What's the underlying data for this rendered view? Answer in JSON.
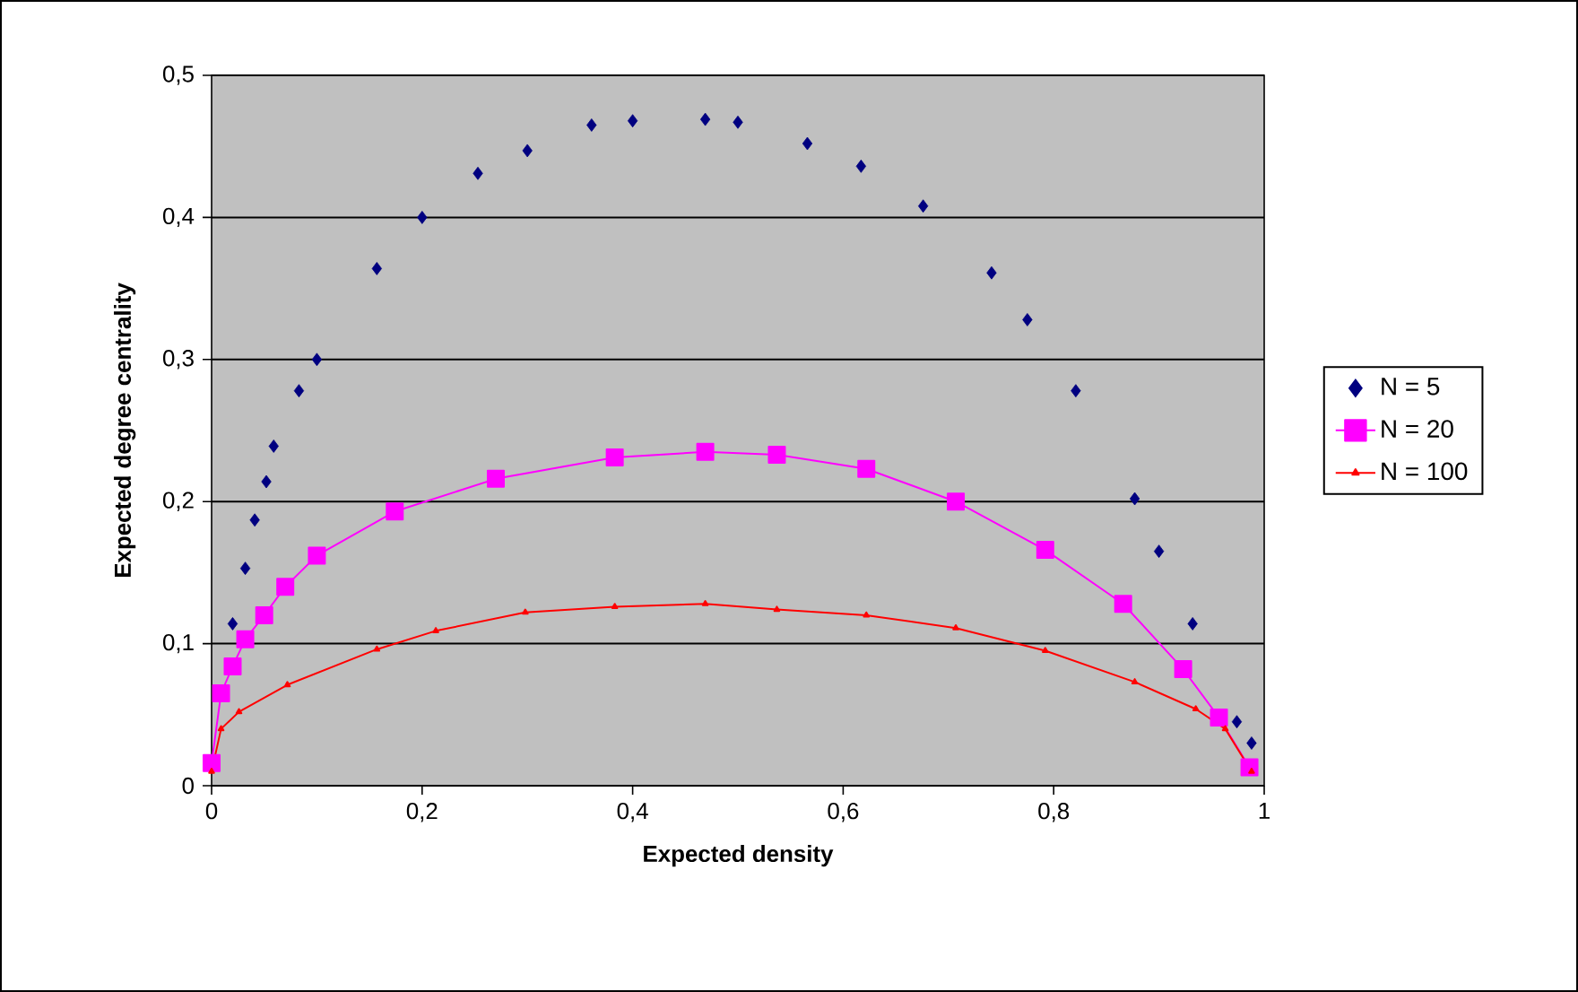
{
  "chart_data": {
    "type": "scatter",
    "xlabel": "Expected density",
    "ylabel": "Expected degree centrality",
    "xlim": [
      0,
      1
    ],
    "ylim": [
      0,
      0.5
    ],
    "xticks": [
      0,
      {
        "value": 0.2,
        "label": "0,2"
      },
      {
        "value": 0.4,
        "label": "0,4"
      },
      {
        "value": 0.6,
        "label": "0,6"
      },
      {
        "value": 0.8,
        "label": "0,8"
      },
      1
    ],
    "yticks": [
      0,
      {
        "value": 0.1,
        "label": "0,1"
      },
      {
        "value": 0.2,
        "label": "0,2"
      },
      {
        "value": 0.3,
        "label": "0,3"
      },
      {
        "value": 0.4,
        "label": "0,4"
      },
      {
        "value": 0.5,
        "label": "0,5"
      }
    ],
    "grid": "y",
    "legend": "right",
    "series": [
      {
        "name": "N = 5",
        "marker": "diamond",
        "color": "#000080",
        "x": [
          0.02,
          0.032,
          0.041,
          0.052,
          0.059,
          0.083,
          0.1,
          0.157,
          0.2,
          0.253,
          0.3,
          0.361,
          0.4,
          0.469,
          0.5,
          0.566,
          0.617,
          0.676,
          0.741,
          0.775,
          0.821,
          0.877,
          0.9,
          0.932,
          0.974,
          0.988
        ],
        "values": [
          0.114,
          0.153,
          0.187,
          0.214,
          0.239,
          0.278,
          0.3,
          0.364,
          0.4,
          0.431,
          0.447,
          0.465,
          0.468,
          0.469,
          0.467,
          0.452,
          0.436,
          0.408,
          0.361,
          0.328,
          0.278,
          0.202,
          0.165,
          0.114,
          0.045,
          0.03
        ]
      },
      {
        "name": "N = 20",
        "type": "line",
        "marker": "square",
        "color": "#ff00ff",
        "x": [
          0,
          0.009,
          0.02,
          0.032,
          0.05,
          0.07,
          0.1,
          0.174,
          0.27,
          0.383,
          0.469,
          0.537,
          0.622,
          0.707,
          0.792,
          0.866,
          0.923,
          0.957,
          0.986
        ],
        "values": [
          0.016,
          0.065,
          0.084,
          0.103,
          0.12,
          0.14,
          0.162,
          0.193,
          0.216,
          0.231,
          0.235,
          0.233,
          0.223,
          0.2,
          0.166,
          0.128,
          0.082,
          0.048,
          0.013
        ]
      },
      {
        "name": "N = 100",
        "type": "line",
        "marker": "triangle",
        "color": "#ff0000",
        "x": [
          0,
          0.009,
          0.026,
          0.072,
          0.157,
          0.213,
          0.298,
          0.383,
          0.469,
          0.537,
          0.622,
          0.707,
          0.792,
          0.877,
          0.935,
          0.963,
          0.988
        ],
        "values": [
          0.01,
          0.04,
          0.052,
          0.071,
          0.096,
          0.109,
          0.122,
          0.126,
          0.128,
          0.124,
          0.12,
          0.111,
          0.095,
          0.073,
          0.054,
          0.04,
          0.01
        ]
      }
    ]
  }
}
